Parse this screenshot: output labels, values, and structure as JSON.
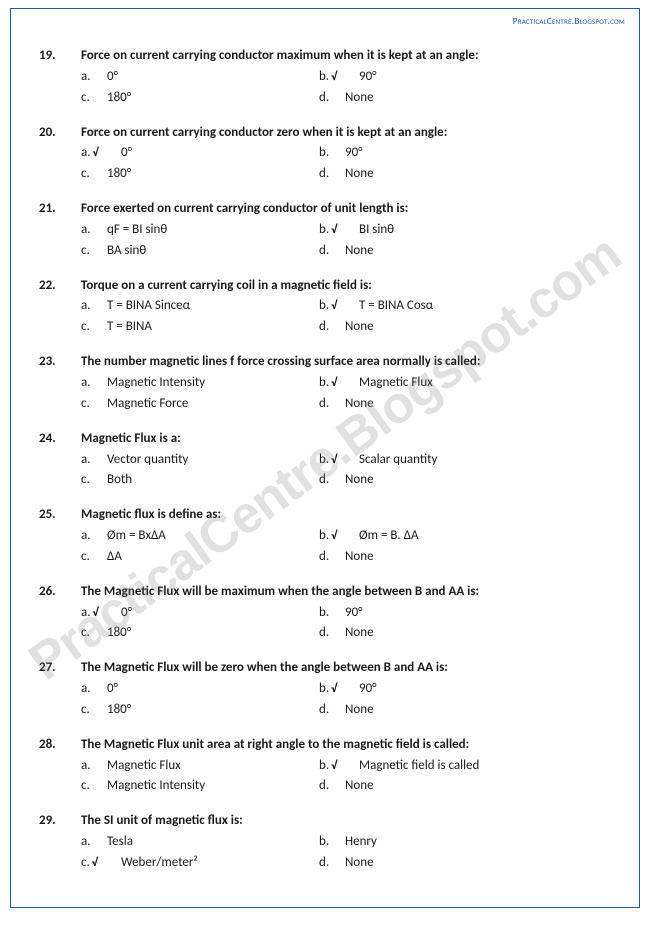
{
  "header_link": "PracticalCentre.Blogspot.com",
  "watermark": "PracticalCentre.Blogspot.com",
  "colors": {
    "border": "#1e5aa8",
    "link": "#1e5aa8",
    "text": "#1a1a1a",
    "watermark": "rgba(120,120,120,0.22)",
    "background": "#ffffff"
  },
  "typography": {
    "body_font": "Calibri",
    "body_fontsize": 13,
    "header_fontsize": 9.5,
    "watermark_fontsize": 52
  },
  "questions": [
    {
      "num": "19.",
      "text": "Force on current carrying conductor maximum when it is kept at an angle:",
      "a": "0°",
      "b": "90°",
      "c": "180°",
      "d": "None",
      "correct": "b"
    },
    {
      "num": "20.",
      "text": "Force on current carrying conductor zero when it is kept at an angle:",
      "a": "0°",
      "b": "90°",
      "c": "180°",
      "d": "None",
      "correct": "a"
    },
    {
      "num": "21.",
      "text": "Force exerted on current carrying conductor of unit length is:",
      "a": "qF = BI sinθ",
      "b": "BI sinθ",
      "c": "BA sinθ",
      "d": "None",
      "correct": "b"
    },
    {
      "num": "22.",
      "text": "Torque on a current carrying coil in a magnetic field is:",
      "a": "T = BINA Sinceα",
      "b": "T = BINA Cosα",
      "c": "T = BINA",
      "d": "None",
      "correct": "b"
    },
    {
      "num": "23.",
      "text": "The number magnetic lines f force crossing surface area normally is called:",
      "a": "Magnetic Intensity",
      "b": "Magnetic Flux",
      "c": "Magnetic Force",
      "d": "None",
      "correct": "b"
    },
    {
      "num": "24.",
      "text": "Magnetic Flux is a:",
      "a": "Vector quantity",
      "b": "Scalar quantity",
      "c": "Both",
      "d": "None",
      "correct": "b"
    },
    {
      "num": "25.",
      "text": "Magnetic flux is define as:",
      "a": "Øm = BxΔA",
      "b": "Øm = B. ΔA",
      "c": "ΔA",
      "d": "None",
      "correct": "b"
    },
    {
      "num": "26.",
      "text": "The Magnetic Flux will be maximum when the angle between B and AA is:",
      "a": "0°",
      "b": "90°",
      "c": "180°",
      "d": "None",
      "correct": "a"
    },
    {
      "num": "27.",
      "text": "The Magnetic Flux will be zero when the angle between B and AA is:",
      "a": "0°",
      "b": "90°",
      "c": "180°",
      "d": "None",
      "correct": "b"
    },
    {
      "num": "28.",
      "text": "The Magnetic Flux unit area at right angle to the magnetic field is called:",
      "a": "Magnetic Flux",
      "b": "Magnetic field is called",
      "c": "Magnetic Intensity",
      "d": "None",
      "correct": "b"
    },
    {
      "num": "29.",
      "text": "The SI unit of magnetic flux is:",
      "a": "Tesla",
      "b": "Henry",
      "c": "Weber/meter²",
      "d": "None",
      "correct": "c"
    }
  ]
}
